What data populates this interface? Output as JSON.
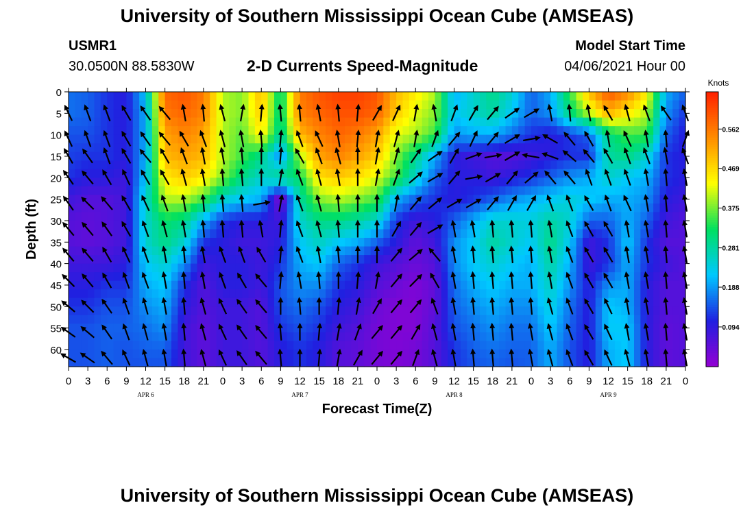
{
  "header": {
    "title": "University of Southern Mississippi Ocean Cube (AMSEAS)",
    "footer_title": "University of Southern Mississippi Ocean Cube (AMSEAS)",
    "station": "USMR1",
    "coordinates": "30.0500N  88.5830W",
    "subtitle": "2-D Currents Speed-Magnitude",
    "start_label": "Model Start Time",
    "start_value": "04/06/2021 Hour 00"
  },
  "chart_data": {
    "type": "heatmap",
    "title": "2-D Currents Speed-Magnitude",
    "xlabel": "Forecast Time(Z)",
    "ylabel": "Depth (ft)",
    "ylim": [
      0,
      64
    ],
    "y_ticks": [
      0,
      5,
      10,
      15,
      20,
      25,
      30,
      35,
      40,
      45,
      50,
      55,
      60
    ],
    "x_tick_labels": [
      "0",
      "3",
      "6",
      "9",
      "12",
      "15",
      "18",
      "21",
      "0",
      "3",
      "6",
      "9",
      "12",
      "15",
      "18",
      "21",
      "0",
      "3",
      "6",
      "9",
      "12",
      "15",
      "18",
      "21",
      "0",
      "3",
      "6",
      "9",
      "12",
      "15",
      "18",
      "21",
      "0"
    ],
    "x_range_hours": [
      0,
      96
    ],
    "day_labels": [
      {
        "text": "APR 6",
        "hour": 12
      },
      {
        "text": "APR 7",
        "hour": 36
      },
      {
        "text": "APR 8",
        "hour": 60
      },
      {
        "text": "APR 9",
        "hour": 84
      }
    ],
    "colorbar": {
      "unit": "Knots",
      "range": [
        0,
        0.65
      ],
      "ticks": [
        0.094,
        0.188,
        0.281,
        0.375,
        0.469,
        0.562
      ],
      "tick_labels": [
        "0.094",
        "0.188",
        "0.281",
        "0.375",
        "0.469",
        "0.562"
      ],
      "colors": [
        "#9400d3",
        "#2020e0",
        "#00c8ff",
        "#00e060",
        "#ffff00",
        "#ff8c00",
        "#ff2000"
      ]
    },
    "speed_field_knots": {
      "depths_ft": [
        0,
        5,
        10,
        15,
        20,
        25,
        30,
        35,
        40,
        45,
        50,
        55,
        60,
        64
      ],
      "hours": [
        0,
        3,
        6,
        9,
        12,
        15,
        18,
        21,
        24,
        27,
        30,
        33,
        36,
        39,
        42,
        45,
        48,
        51,
        54,
        57,
        60,
        63,
        66,
        69,
        72,
        75,
        78,
        81,
        84,
        87,
        90,
        93,
        96
      ],
      "rows": [
        [
          0.16,
          0.15,
          0.12,
          0.1,
          0.22,
          0.58,
          0.6,
          0.56,
          0.4,
          0.38,
          0.5,
          0.3,
          0.56,
          0.6,
          0.62,
          0.62,
          0.6,
          0.5,
          0.45,
          0.4,
          0.2,
          0.25,
          0.3,
          0.25,
          0.15,
          0.2,
          0.35,
          0.5,
          0.6,
          0.55,
          0.45,
          0.2,
          0.15
        ],
        [
          0.16,
          0.15,
          0.12,
          0.1,
          0.2,
          0.56,
          0.58,
          0.55,
          0.4,
          0.38,
          0.48,
          0.3,
          0.55,
          0.58,
          0.6,
          0.6,
          0.58,
          0.48,
          0.42,
          0.38,
          0.22,
          0.25,
          0.28,
          0.22,
          0.15,
          0.18,
          0.3,
          0.4,
          0.5,
          0.45,
          0.4,
          0.18,
          0.12
        ],
        [
          0.14,
          0.14,
          0.12,
          0.1,
          0.2,
          0.52,
          0.55,
          0.52,
          0.4,
          0.36,
          0.45,
          0.28,
          0.5,
          0.55,
          0.58,
          0.56,
          0.52,
          0.42,
          0.4,
          0.35,
          0.18,
          0.2,
          0.2,
          0.16,
          0.12,
          0.1,
          0.12,
          0.15,
          0.3,
          0.35,
          0.35,
          0.15,
          0.1
        ],
        [
          0.13,
          0.12,
          0.12,
          0.1,
          0.2,
          0.5,
          0.52,
          0.5,
          0.4,
          0.35,
          0.3,
          0.18,
          0.4,
          0.52,
          0.55,
          0.52,
          0.48,
          0.38,
          0.3,
          0.2,
          0.1,
          0.08,
          0.06,
          0.06,
          0.08,
          0.1,
          0.12,
          0.12,
          0.28,
          0.3,
          0.25,
          0.12,
          0.1
        ],
        [
          0.12,
          0.1,
          0.1,
          0.08,
          0.22,
          0.45,
          0.48,
          0.45,
          0.38,
          0.3,
          0.25,
          0.3,
          0.32,
          0.46,
          0.48,
          0.46,
          0.42,
          0.35,
          0.25,
          0.15,
          0.1,
          0.1,
          0.08,
          0.1,
          0.12,
          0.15,
          0.18,
          0.2,
          0.25,
          0.22,
          0.2,
          0.12,
          0.1
        ],
        [
          0.08,
          0.06,
          0.06,
          0.08,
          0.25,
          0.4,
          0.4,
          0.35,
          0.25,
          0.22,
          0.2,
          0.02,
          0.28,
          0.38,
          0.4,
          0.38,
          0.35,
          0.2,
          0.15,
          0.12,
          0.1,
          0.12,
          0.15,
          0.18,
          0.2,
          0.22,
          0.24,
          0.22,
          0.2,
          0.2,
          0.18,
          0.1,
          0.08
        ],
        [
          0.06,
          0.05,
          0.06,
          0.08,
          0.25,
          0.32,
          0.3,
          0.2,
          0.12,
          0.1,
          0.1,
          0.08,
          0.25,
          0.3,
          0.3,
          0.28,
          0.25,
          0.12,
          0.08,
          0.1,
          0.15,
          0.2,
          0.25,
          0.25,
          0.24,
          0.28,
          0.25,
          0.15,
          0.15,
          0.2,
          0.15,
          0.08,
          0.06
        ],
        [
          0.06,
          0.05,
          0.06,
          0.08,
          0.25,
          0.3,
          0.25,
          0.12,
          0.1,
          0.08,
          0.08,
          0.1,
          0.22,
          0.26,
          0.22,
          0.2,
          0.15,
          0.1,
          0.05,
          0.08,
          0.18,
          0.22,
          0.28,
          0.25,
          0.22,
          0.3,
          0.22,
          0.08,
          0.12,
          0.22,
          0.12,
          0.06,
          0.06
        ],
        [
          0.08,
          0.08,
          0.08,
          0.1,
          0.22,
          0.25,
          0.18,
          0.08,
          0.1,
          0.1,
          0.08,
          0.12,
          0.2,
          0.22,
          0.15,
          0.12,
          0.08,
          0.06,
          0.04,
          0.06,
          0.18,
          0.22,
          0.25,
          0.22,
          0.2,
          0.28,
          0.2,
          0.08,
          0.12,
          0.2,
          0.12,
          0.08,
          0.06
        ],
        [
          0.1,
          0.1,
          0.12,
          0.12,
          0.2,
          0.22,
          0.12,
          0.06,
          0.1,
          0.1,
          0.08,
          0.14,
          0.18,
          0.18,
          0.12,
          0.1,
          0.06,
          0.04,
          0.02,
          0.05,
          0.16,
          0.2,
          0.22,
          0.2,
          0.2,
          0.26,
          0.18,
          0.1,
          0.18,
          0.2,
          0.1,
          0.06,
          0.06
        ],
        [
          0.12,
          0.12,
          0.14,
          0.14,
          0.18,
          0.2,
          0.1,
          0.06,
          0.08,
          0.08,
          0.06,
          0.14,
          0.16,
          0.14,
          0.1,
          0.08,
          0.04,
          0.02,
          0.02,
          0.05,
          0.15,
          0.18,
          0.2,
          0.18,
          0.18,
          0.24,
          0.16,
          0.1,
          0.22,
          0.2,
          0.1,
          0.06,
          0.06
        ],
        [
          0.14,
          0.14,
          0.15,
          0.15,
          0.16,
          0.18,
          0.08,
          0.05,
          0.08,
          0.08,
          0.06,
          0.12,
          0.14,
          0.12,
          0.08,
          0.06,
          0.03,
          0.02,
          0.02,
          0.06,
          0.14,
          0.16,
          0.18,
          0.16,
          0.16,
          0.22,
          0.15,
          0.1,
          0.22,
          0.22,
          0.1,
          0.05,
          0.06
        ],
        [
          0.14,
          0.14,
          0.15,
          0.14,
          0.15,
          0.15,
          0.08,
          0.05,
          0.08,
          0.08,
          0.06,
          0.1,
          0.12,
          0.1,
          0.06,
          0.05,
          0.03,
          0.02,
          0.03,
          0.06,
          0.12,
          0.15,
          0.16,
          0.15,
          0.15,
          0.2,
          0.14,
          0.1,
          0.2,
          0.22,
          0.1,
          0.05,
          0.06
        ],
        [
          0.14,
          0.14,
          0.15,
          0.14,
          0.14,
          0.14,
          0.08,
          0.05,
          0.08,
          0.08,
          0.06,
          0.1,
          0.12,
          0.1,
          0.06,
          0.05,
          0.03,
          0.02,
          0.03,
          0.06,
          0.12,
          0.14,
          0.15,
          0.14,
          0.15,
          0.2,
          0.14,
          0.1,
          0.2,
          0.22,
          0.1,
          0.05,
          0.06
        ]
      ]
    },
    "vectors": {
      "depths_ft": [
        5,
        11,
        15,
        20,
        26,
        32,
        38,
        44,
        50,
        56,
        62
      ],
      "hours": [
        0,
        3,
        6,
        9,
        12,
        15,
        18,
        21,
        24,
        27,
        30,
        33,
        36,
        39,
        42,
        45,
        48,
        51,
        54,
        57,
        60,
        63,
        66,
        69,
        72,
        75,
        78,
        81,
        84,
        87,
        90,
        93,
        96
      ],
      "angles_deg": [
        [
          -25,
          -20,
          -20,
          -30,
          -35,
          -40,
          -10,
          -5,
          -15,
          10,
          5,
          -5,
          -5,
          -10,
          -5,
          5,
          30,
          25,
          10,
          -10,
          20,
          30,
          40,
          55,
          60,
          -10,
          -5,
          -10,
          -30,
          -15,
          -20,
          -35,
          -20
        ],
        [
          -25,
          -20,
          -20,
          -30,
          -35,
          -40,
          -30,
          -20,
          -15,
          -10,
          -5,
          5,
          -20,
          -25,
          -10,
          5,
          10,
          15,
          10,
          20,
          40,
          25,
          40,
          60,
          80,
          -60,
          -40,
          -30,
          -10,
          -25,
          -10,
          -5,
          20
        ],
        [
          -30,
          -35,
          -20,
          -30,
          -40,
          -30,
          -20,
          -10,
          -10,
          -5,
          0,
          5,
          -30,
          -20,
          -15,
          0,
          10,
          15,
          35,
          55,
          30,
          70,
          80,
          60,
          -80,
          -70,
          -50,
          -40,
          -30,
          -20,
          -20,
          -10,
          -20
        ],
        [
          -35,
          -40,
          -30,
          -25,
          -30,
          -30,
          -15,
          -10,
          -5,
          -5,
          0,
          10,
          -20,
          -15,
          -10,
          0,
          10,
          20,
          50,
          60,
          40,
          80,
          60,
          40,
          50,
          -40,
          -40,
          -20,
          -20,
          -20,
          -10,
          -5,
          -10
        ],
        [
          -35,
          -45,
          -40,
          -30,
          -25,
          -20,
          -10,
          -5,
          -5,
          -5,
          80,
          10,
          -20,
          -15,
          -5,
          0,
          0,
          10,
          40,
          50,
          60,
          60,
          40,
          30,
          30,
          -20,
          -20,
          -30,
          -20,
          -25,
          -10,
          -5,
          -10
        ],
        [
          -40,
          -40,
          -35,
          -30,
          -20,
          -15,
          -10,
          -5,
          -5,
          -5,
          -10,
          5,
          -20,
          -15,
          -5,
          0,
          0,
          30,
          40,
          60,
          -10,
          -10,
          -5,
          -5,
          -5,
          -10,
          -20,
          -30,
          -30,
          -10,
          -10,
          -5,
          -10
        ],
        [
          -40,
          -40,
          -30,
          -25,
          -20,
          -10,
          -5,
          -10,
          -20,
          -20,
          -30,
          5,
          -20,
          -10,
          -5,
          0,
          0,
          40,
          50,
          -40,
          -10,
          -5,
          -5,
          -5,
          -5,
          -10,
          -20,
          -30,
          -30,
          -10,
          -10,
          -5,
          -10
        ],
        [
          -45,
          -40,
          -30,
          -20,
          -20,
          -10,
          -5,
          -10,
          -20,
          -30,
          -40,
          5,
          -10,
          -5,
          0,
          5,
          10,
          40,
          45,
          -30,
          -10,
          -5,
          -5,
          -5,
          -5,
          -10,
          -20,
          -30,
          -30,
          -10,
          -10,
          -5,
          -10
        ],
        [
          -50,
          -45,
          -35,
          -20,
          -15,
          -10,
          -5,
          -15,
          -25,
          -35,
          -40,
          0,
          -5,
          0,
          5,
          10,
          30,
          40,
          40,
          -20,
          -10,
          -5,
          -5,
          -5,
          -5,
          -15,
          -20,
          -30,
          -25,
          -10,
          -10,
          -5,
          -10
        ],
        [
          -55,
          -50,
          -35,
          -20,
          -15,
          -10,
          -5,
          -15,
          -25,
          -35,
          -40,
          -5,
          0,
          5,
          10,
          20,
          40,
          40,
          30,
          -15,
          -10,
          -5,
          -5,
          -5,
          -10,
          -15,
          -20,
          -30,
          -25,
          -10,
          -10,
          -5,
          -10
        ],
        [
          -60,
          -55,
          -40,
          -25,
          -15,
          -10,
          -5,
          -15,
          -25,
          -35,
          -40,
          -5,
          0,
          5,
          10,
          30,
          40,
          40,
          20,
          -15,
          -10,
          -5,
          -5,
          -5,
          -10,
          -15,
          -20,
          -30,
          -25,
          -15,
          -10,
          -5,
          -10
        ]
      ]
    }
  }
}
